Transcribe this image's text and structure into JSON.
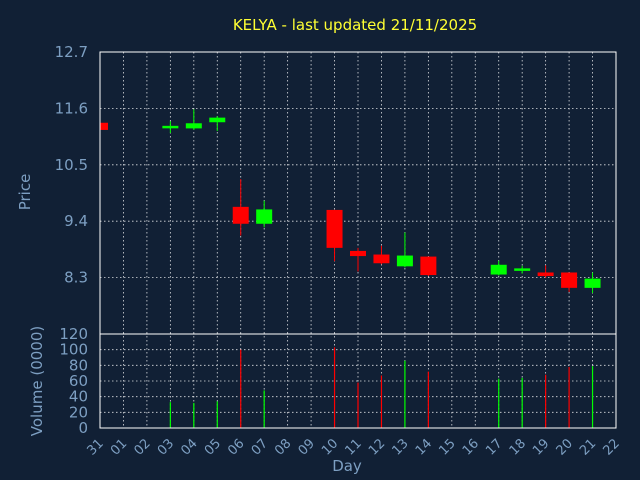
{
  "chart_data": {
    "type": "candlestick",
    "title": "KELYA - last updated 21/11/2025",
    "xlabel": "Day",
    "ylabel_price": "Price",
    "ylabel_volume": "Volume (0000)",
    "x_ticks": [
      "31",
      "01",
      "02",
      "03",
      "04",
      "05",
      "06",
      "07",
      "08",
      "09",
      "10",
      "11",
      "12",
      "13",
      "14",
      "15",
      "16",
      "17",
      "18",
      "19",
      "20",
      "21",
      "22"
    ],
    "price_ticks": [
      "8.3",
      "9.4",
      "10.5",
      "11.6",
      "12.7"
    ],
    "volume_ticks": [
      "0",
      "20",
      "40",
      "60",
      "80",
      "100",
      "120"
    ],
    "price_range": [
      7.2,
      12.7
    ],
    "volume_range": [
      0,
      120
    ],
    "grid": true,
    "colors": {
      "up": "#00ff00",
      "down": "#ff0000",
      "background": "#112035",
      "title": "#ffff33",
      "axis_text": "#7d9fc2"
    },
    "candles": [
      {
        "day": "31",
        "open": 11.32,
        "close": 11.18,
        "high": 11.32,
        "low": 11.18,
        "volume": 0
      },
      {
        "day": "03",
        "open": 11.22,
        "close": 11.26,
        "high": 11.35,
        "low": 11.12,
        "volume": 33
      },
      {
        "day": "04",
        "open": 11.21,
        "close": 11.31,
        "high": 11.58,
        "low": 11.18,
        "volume": 32
      },
      {
        "day": "05",
        "open": 11.33,
        "close": 11.42,
        "high": 11.45,
        "low": 11.16,
        "volume": 34
      },
      {
        "day": "06",
        "open": 9.68,
        "close": 9.35,
        "high": 10.22,
        "low": 9.12,
        "volume": 100
      },
      {
        "day": "07",
        "open": 9.35,
        "close": 9.63,
        "high": 9.8,
        "low": 9.28,
        "volume": 48
      },
      {
        "day": "10",
        "open": 9.62,
        "close": 8.88,
        "high": 9.62,
        "low": 8.62,
        "volume": 103
      },
      {
        "day": "11",
        "open": 8.82,
        "close": 8.72,
        "high": 8.88,
        "low": 8.42,
        "volume": 58
      },
      {
        "day": "12",
        "open": 8.75,
        "close": 8.58,
        "high": 8.92,
        "low": 8.56,
        "volume": 67
      },
      {
        "day": "13",
        "open": 8.52,
        "close": 8.73,
        "high": 9.18,
        "low": 8.5,
        "volume": 86
      },
      {
        "day": "14",
        "open": 8.71,
        "close": 8.35,
        "high": 8.71,
        "low": 8.33,
        "volume": 72
      },
      {
        "day": "17",
        "open": 8.36,
        "close": 8.55,
        "high": 8.63,
        "low": 8.34,
        "volume": 63
      },
      {
        "day": "18",
        "open": 8.45,
        "close": 8.48,
        "high": 8.53,
        "low": 8.38,
        "volume": 64
      },
      {
        "day": "19",
        "open": 8.4,
        "close": 8.33,
        "high": 8.54,
        "low": 8.3,
        "volume": 68
      },
      {
        "day": "20",
        "open": 8.4,
        "close": 8.1,
        "high": 8.4,
        "low": 8.02,
        "volume": 78
      },
      {
        "day": "21",
        "open": 8.1,
        "close": 8.28,
        "high": 8.4,
        "low": 8.0,
        "volume": 79
      }
    ]
  }
}
